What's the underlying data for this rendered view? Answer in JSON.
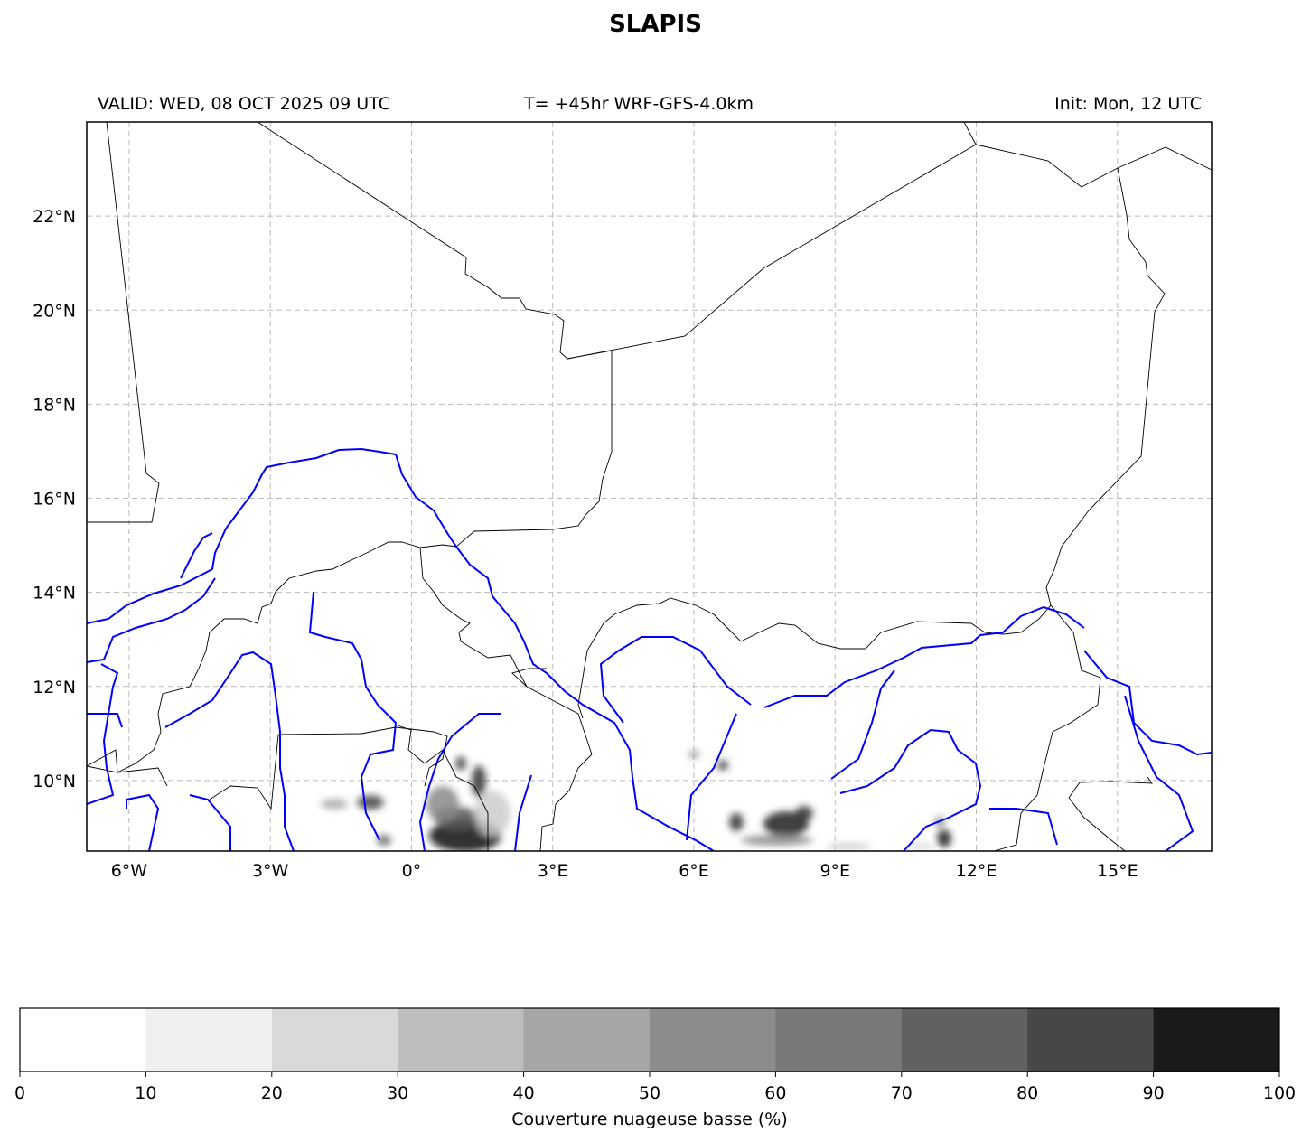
{
  "title": "SLAPIS",
  "header": {
    "valid": "VALID: WED, 08 OCT 2025 09 UTC",
    "forecast": "T= +45hr WRF-GFS-4.0km",
    "init": "Init: Mon, 12 UTC"
  },
  "map": {
    "extent_lon": [
      -6.9,
      17.0
    ],
    "extent_lat": [
      8.5,
      24.0
    ],
    "gridlines": true,
    "lon_ticks": [
      -6,
      -3,
      0,
      3,
      6,
      9,
      12,
      15
    ],
    "lon_labels": [
      "6°W",
      "3°W",
      "0°",
      "3°E",
      "6°E",
      "9°E",
      "12°E",
      "15°E"
    ],
    "lat_ticks": [
      22,
      20,
      18,
      16,
      14,
      12,
      10
    ],
    "lat_labels": [
      "22°N",
      "20°N",
      "18°N",
      "16°N",
      "14°N",
      "12°N",
      "10°N"
    ],
    "border_color": "#000000",
    "river_color": "#0000ff"
  },
  "colorbar": {
    "label": "Couverture nuageuse basse (%)",
    "ticks": [
      "0",
      "10",
      "20",
      "30",
      "40",
      "50",
      "60",
      "70",
      "80",
      "90",
      "100"
    ],
    "colors": [
      "#ffffff",
      "#f0f0f0",
      "#d9d9d9",
      "#bdbdbd",
      "#a6a6a6",
      "#8c8c8c",
      "#787878",
      "#616161",
      "#474747",
      "#1a1a1a"
    ]
  }
}
